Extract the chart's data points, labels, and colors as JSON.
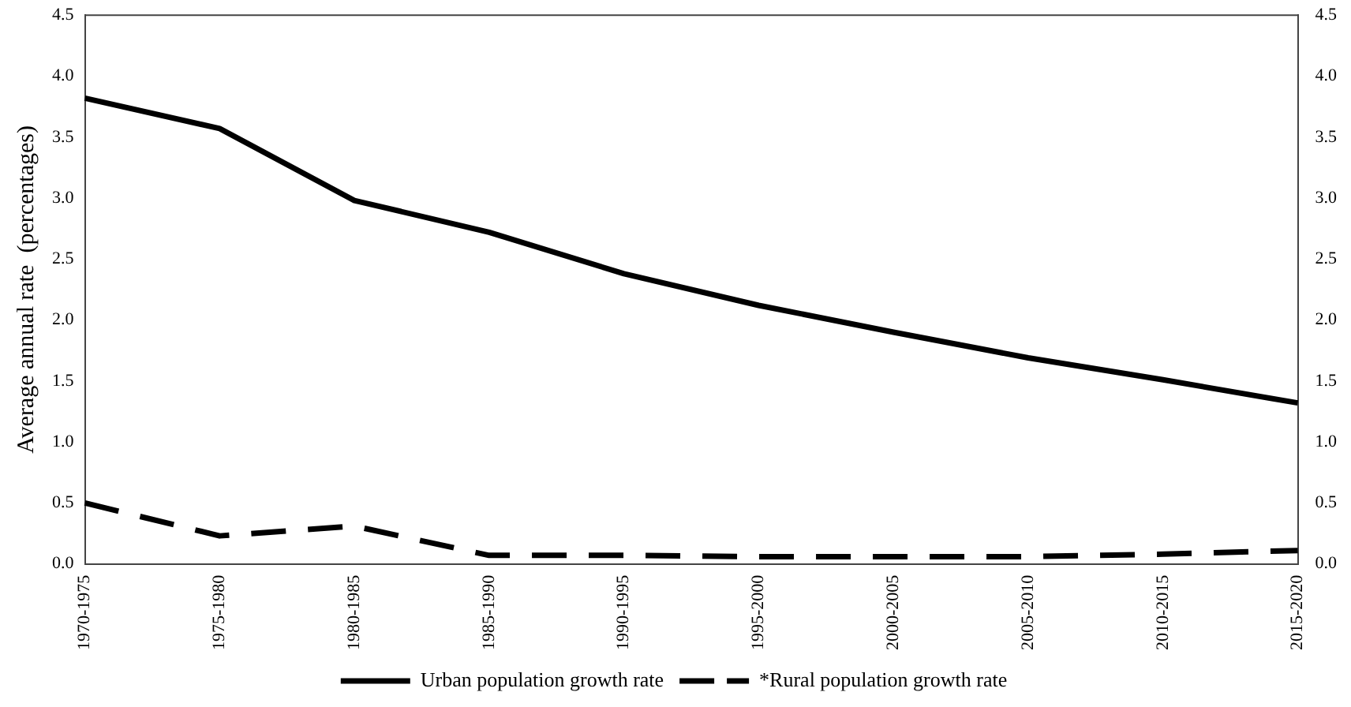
{
  "chart_data": {
    "type": "line",
    "ylabel": "Average annual rate  (percentages)",
    "categories": [
      "1970-1975",
      "1975-1980",
      "1980-1985",
      "1985-1990",
      "1990-1995",
      "1995-2000",
      "2000-2005",
      "2005-2010",
      "2010-2015",
      "2015-2020"
    ],
    "series": [
      {
        "name": "Urban population growth rate",
        "color": "#000000",
        "line_style": "solid",
        "values": [
          3.82,
          3.57,
          2.98,
          2.72,
          2.38,
          2.12,
          1.9,
          1.69,
          1.51,
          1.32
        ]
      },
      {
        "name": "*Rural population growth rate",
        "color": "#000000",
        "line_style": "dashed",
        "values": [
          0.5,
          0.23,
          0.31,
          0.07,
          0.07,
          0.06,
          0.06,
          0.06,
          0.08,
          0.11
        ]
      }
    ],
    "ylim": [
      0,
      4.5
    ],
    "yticks": [
      {
        "value": 0,
        "label": "0.0"
      },
      {
        "value": 0.5,
        "label": "0.5"
      },
      {
        "value": 1,
        "label": "1.0"
      },
      {
        "value": 1.5,
        "label": "1.5"
      },
      {
        "value": 2,
        "label": "2.0"
      },
      {
        "value": 2.5,
        "label": "2.5"
      },
      {
        "value": 3,
        "label": "3.0"
      },
      {
        "value": 3.5,
        "label": "3.5"
      },
      {
        "value": 4,
        "label": "4.0"
      },
      {
        "value": 4.5,
        "label": "4.5"
      }
    ],
    "y2lim": [
      0,
      4.5
    ],
    "y2ticks": [
      {
        "value": 0,
        "label": "0.0"
      },
      {
        "value": 0.5,
        "label": "0.5"
      },
      {
        "value": 1,
        "label": "1.0"
      },
      {
        "value": 1.5,
        "label": "1.5"
      },
      {
        "value": 2,
        "label": "2.0"
      },
      {
        "value": 2.5,
        "label": "2.5"
      },
      {
        "value": 3,
        "label": "3.0"
      },
      {
        "value": 3.5,
        "label": "3.5"
      },
      {
        "value": 4,
        "label": "4.0"
      },
      {
        "value": 4.5,
        "label": "4.5"
      }
    ],
    "grid": false,
    "legend": "bottom",
    "marker": "none"
  }
}
